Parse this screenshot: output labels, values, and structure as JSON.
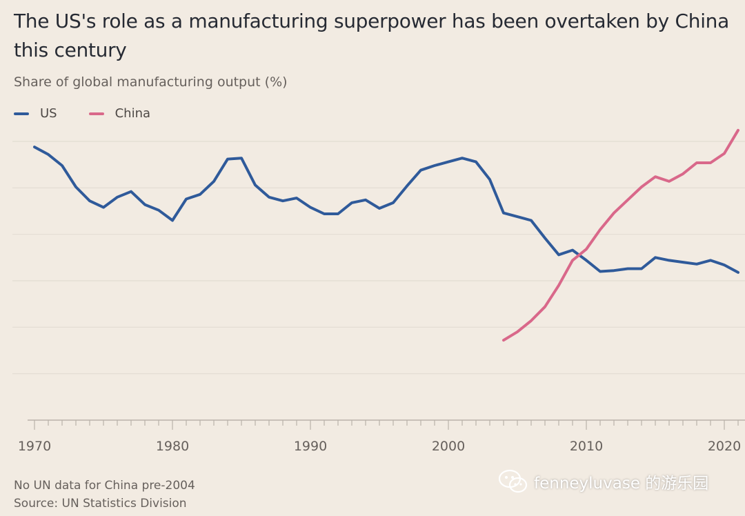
{
  "header": {
    "title": "The US's role as a manufacturing superpower has been overtaken by China this century",
    "subtitle": "Share of global manufacturing output (%)"
  },
  "legend": [
    {
      "label": "US",
      "color": "#2f5a9a"
    },
    {
      "label": "China",
      "color": "#d9688a"
    }
  ],
  "footer": {
    "note": "No UN data for China pre-2004",
    "source": "Source: UN Statistics Division"
  },
  "watermark": {
    "icon": "wechat-icon",
    "text": "fenneyluvase 的游乐园"
  },
  "chart_data": {
    "type": "line",
    "title": "The US's role as a manufacturing superpower has been overtaken by China this century",
    "subtitle": "Share of global manufacturing output (%)",
    "xlabel": "",
    "ylabel": "Share of global manufacturing output (%)",
    "xlim": [
      1970,
      2021
    ],
    "ylim": [
      0,
      30
    ],
    "yticks": [
      0,
      5,
      10,
      15,
      20,
      25,
      30
    ],
    "ytick_labels_shown": false,
    "xtick_labels": [
      "1970",
      "1980",
      "1990",
      "2000",
      "2010",
      "2020"
    ],
    "xtick_values": [
      1970,
      1980,
      1990,
      2000,
      2010,
      2020
    ],
    "grid": true,
    "legend_position": "top-left",
    "series": [
      {
        "name": "US",
        "color": "#2f5a9a",
        "x": [
          1970,
          1971,
          1972,
          1973,
          1974,
          1975,
          1976,
          1977,
          1978,
          1979,
          1980,
          1981,
          1982,
          1983,
          1984,
          1985,
          1986,
          1987,
          1988,
          1989,
          1990,
          1991,
          1992,
          1993,
          1994,
          1995,
          1996,
          1997,
          1998,
          1999,
          2000,
          2001,
          2002,
          2003,
          2004,
          2005,
          2006,
          2007,
          2008,
          2009,
          2010,
          2011,
          2012,
          2013,
          2014,
          2015,
          2016,
          2017,
          2018,
          2019,
          2020,
          2021
        ],
        "values": [
          29.4,
          28.6,
          27.4,
          25.1,
          23.6,
          22.9,
          24.0,
          24.6,
          23.2,
          22.6,
          21.5,
          23.8,
          24.3,
          25.7,
          28.1,
          28.2,
          25.3,
          24.0,
          23.6,
          23.9,
          22.9,
          22.2,
          22.2,
          23.4,
          23.7,
          22.8,
          23.4,
          25.2,
          26.9,
          27.4,
          27.8,
          28.2,
          27.8,
          25.9,
          22.3,
          21.9,
          21.5,
          19.6,
          17.8,
          18.3,
          17.2,
          16.0,
          16.1,
          16.3,
          16.3,
          17.5,
          17.2,
          17.0,
          16.8,
          17.2,
          16.7,
          15.9
        ]
      },
      {
        "name": "China",
        "color": "#d9688a",
        "x": [
          2004,
          2005,
          2006,
          2007,
          2008,
          2009,
          2010,
          2011,
          2012,
          2013,
          2014,
          2015,
          2016,
          2017,
          2018,
          2019,
          2020,
          2021
        ],
        "values": [
          8.6,
          9.5,
          10.7,
          12.2,
          14.5,
          17.2,
          18.4,
          20.5,
          22.3,
          23.7,
          25.1,
          26.2,
          25.7,
          26.5,
          27.7,
          27.7,
          28.7,
          31.2
        ]
      }
    ]
  }
}
